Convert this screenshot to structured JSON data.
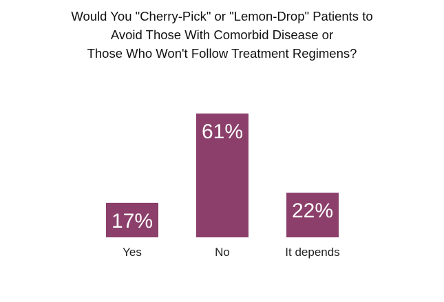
{
  "chart_data": {
    "type": "bar",
    "title_lines": [
      "Would You \"Cherry-Pick\" or \"Lemon-Drop\" Patients to",
      "Avoid Those With Comorbid Disease or",
      "Those Who Won't Follow Treatment Regimens?"
    ],
    "categories": [
      "Yes",
      "No",
      "It depends"
    ],
    "values": [
      17,
      61,
      22
    ],
    "data_labels": [
      "17%",
      "61%",
      "22%"
    ],
    "ylim": [
      0,
      100
    ],
    "grid": false,
    "legend": "none",
    "bar_color": "#8b3f6a"
  }
}
